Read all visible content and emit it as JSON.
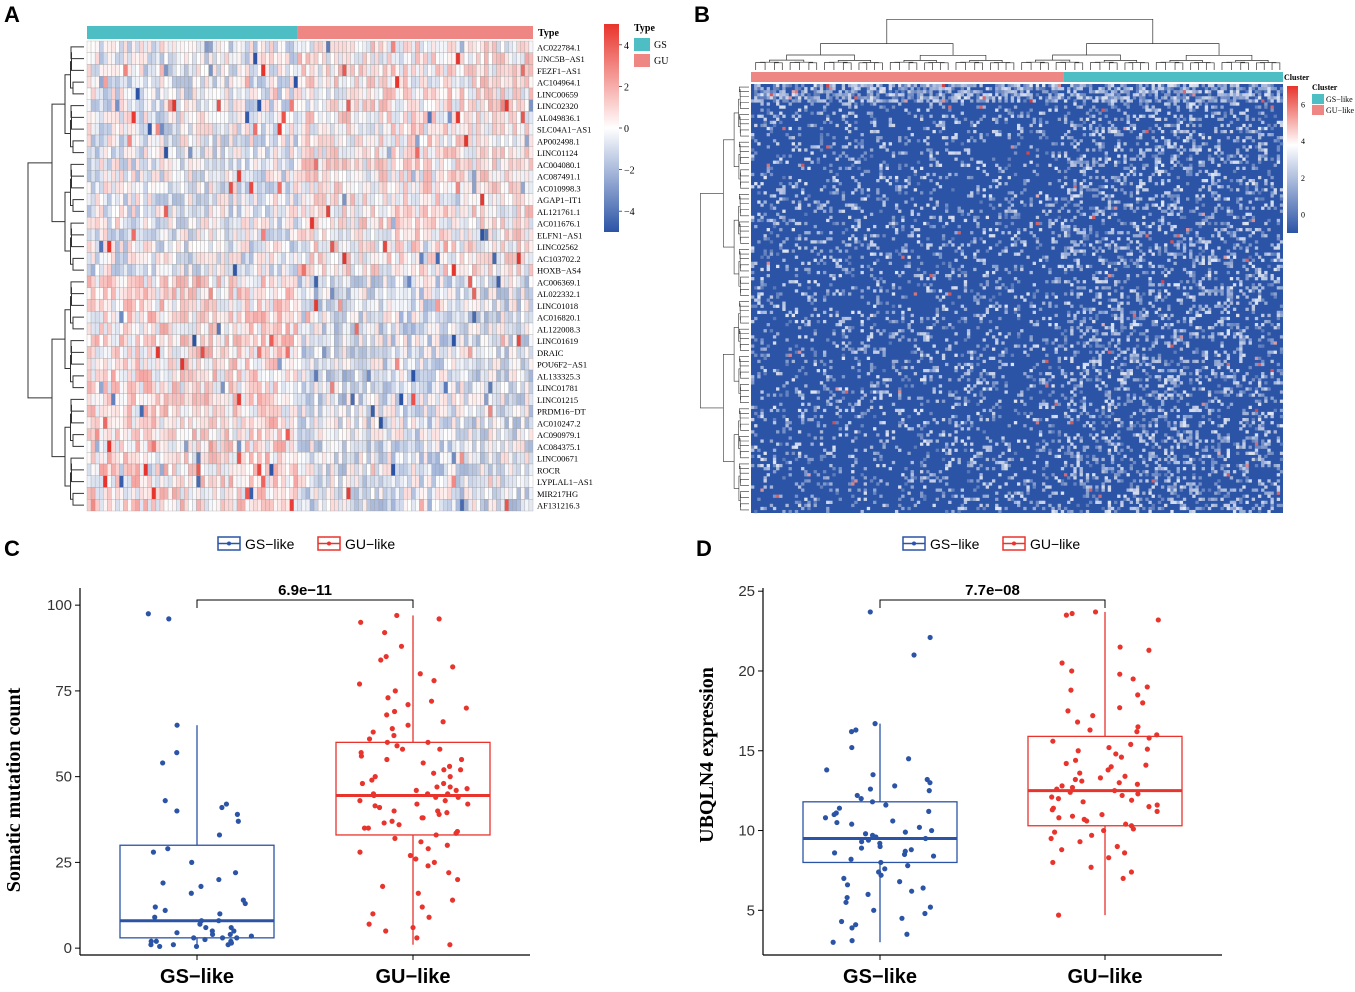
{
  "panels": {
    "A": {
      "letter": "A",
      "type_label": "Type",
      "legend_title": "Type",
      "legend_items": [
        "GS",
        "GU"
      ],
      "scale_ticks": [
        "4",
        "2",
        "0",
        "−2",
        "−4"
      ],
      "colors": {
        "gs": "#4dbfc4",
        "gu": "#ee8684",
        "high": "#e8342c",
        "mid": "#ffffff",
        "low": "#2b54a6"
      },
      "genes": [
        "AC022784.1",
        "UNC5B−AS1",
        "FEZF1−AS1",
        "AC104964.1",
        "LINC00659",
        "LINC02320",
        "AL049836.1",
        "SLC04A1−AS1",
        "AP002498.1",
        "LINC01124",
        "AC004080.1",
        "AC087491.1",
        "AC010998.3",
        "AGAP1−IT1",
        "AL121761.1",
        "AC011676.1",
        "ELFN1−AS1",
        "LINC02562",
        "AC103702.2",
        "HOXB−AS4",
        "AC006369.1",
        "AL022332.1",
        "LINC01018",
        "AC016820.1",
        "AL122008.3",
        "LINC01619",
        "DRAIC",
        "POU6F2−AS1",
        "AL133325.3",
        "LINC01781",
        "LINC01215",
        "PRDM16−DT",
        "AC010247.2",
        "AC090979.1",
        "AC084375.1",
        "LINC00671",
        "ROCR",
        "LYPLAL1−AS1",
        "MIR217HG",
        "AF131216.3"
      ]
    },
    "B": {
      "letter": "B",
      "cluster_label": "Cluster",
      "legend_title": "Cluster",
      "legend_items": [
        "GS−like",
        "GU−like"
      ],
      "scale_ticks": [
        "6",
        "4",
        "2",
        "0"
      ],
      "colors": {
        "gs": "#4dbfc4",
        "gu": "#ee8684",
        "high": "#e8342c",
        "mid": "#ffffff",
        "low": "#2b54a6"
      }
    },
    "C": {
      "letter": "C"
    },
    "D": {
      "letter": "D"
    }
  },
  "chart_data": [
    {
      "type": "heatmap",
      "panel": "A",
      "columns": {
        "GS": 52,
        "GU": 58
      },
      "rows": 40,
      "color_range": [
        -5,
        5
      ],
      "annotation": "Type"
    },
    {
      "type": "heatmap",
      "panel": "B",
      "columns": {
        "GU-like": 100,
        "GS-like": 70
      },
      "color_range": [
        -1,
        7
      ],
      "annotation": "Cluster"
    },
    {
      "type": "box",
      "panel": "C",
      "ylabel": "Somatic mutation count",
      "categories": [
        "GS−like",
        "GU−like"
      ],
      "legend": [
        "GS−like",
        "GU−like"
      ],
      "colors": [
        "#2b54a6",
        "#e8342c"
      ],
      "ylim": [
        -2,
        105
      ],
      "yticks": [
        0,
        25,
        50,
        75,
        100
      ],
      "pvalue": "6.9e−11",
      "boxes": [
        {
          "name": "GS−like",
          "q1": 3,
          "median": 8,
          "q3": 30,
          "whisker_low": 0,
          "whisker_high": 65
        },
        {
          "name": "GU−like",
          "q1": 33,
          "median": 44.5,
          "q3": 60,
          "whisker_low": 1,
          "whisker_high": 97
        }
      ],
      "points": [
        [
          97.5,
          96,
          65,
          57,
          54,
          43,
          42,
          41,
          40,
          39,
          37,
          33,
          29,
          28,
          25,
          22,
          20,
          19,
          18,
          16,
          14,
          13,
          12,
          11,
          10,
          9,
          8,
          8,
          7,
          6,
          6,
          5,
          5,
          4,
          4,
          3,
          3,
          3,
          2,
          2,
          2,
          1,
          1,
          1,
          0.5,
          0.5,
          1.5,
          2.5,
          3.5,
          4.5
        ],
        [
          97,
          96,
          95,
          92,
          88,
          85,
          84,
          82,
          80,
          78,
          77,
          75,
          73,
          72,
          71,
          70,
          69,
          68,
          66,
          65,
          64,
          63,
          62,
          61,
          60,
          60,
          59,
          58,
          58,
          57,
          56,
          55,
          55,
          54,
          53,
          52,
          52,
          51,
          50,
          50,
          49,
          48,
          48,
          47,
          47,
          46,
          46,
          45,
          45,
          45,
          44,
          44,
          43,
          43,
          42,
          42,
          41,
          40,
          40,
          39,
          38,
          38,
          37,
          36,
          35,
          35,
          34,
          33,
          32,
          31,
          30,
          29,
          28,
          27,
          26,
          25,
          24,
          22,
          20,
          18,
          16,
          14,
          12,
          10,
          9,
          7,
          6,
          5,
          3,
          1,
          44.5,
          46.5,
          41.5,
          39.5,
          36.5,
          33.5
        ]
      ]
    },
    {
      "type": "box",
      "panel": "D",
      "ylabel": "UBQLN4 expression",
      "categories": [
        "GS−like",
        "GU−like"
      ],
      "legend": [
        "GS−like",
        "GU−like"
      ],
      "colors": [
        "#2b54a6",
        "#e8342c"
      ],
      "ylim": [
        2.2,
        25.2
      ],
      "yticks": [
        5,
        10,
        15,
        20,
        25
      ],
      "pvalue": "7.7e−08",
      "boxes": [
        {
          "name": "GS−like",
          "q1": 8,
          "median": 9.5,
          "q3": 11.8,
          "whisker_low": 3,
          "whisker_high": 16.7
        },
        {
          "name": "GU−like",
          "q1": 10.3,
          "median": 12.5,
          "q3": 15.9,
          "whisker_low": 4.7,
          "whisker_high": 23.7
        }
      ],
      "points": [
        [
          23.7,
          22.1,
          21,
          16.7,
          16.3,
          16.2,
          15.2,
          14.5,
          13.8,
          13.2,
          13,
          12.8,
          12.5,
          12.2,
          12,
          11.8,
          11.6,
          11.4,
          11.2,
          11,
          10.8,
          10.6,
          10.4,
          10.2,
          10,
          9.9,
          9.8,
          9.6,
          9.5,
          9.4,
          9.3,
          9.2,
          9,
          8.9,
          8.8,
          8.6,
          8.5,
          8.4,
          8.2,
          8,
          7.8,
          7.6,
          7.4,
          7.2,
          7,
          6.8,
          6.6,
          6.4,
          6.2,
          6,
          5.8,
          5.5,
          5.2,
          5,
          4.8,
          4.5,
          4.3,
          4.1,
          3.9,
          3.5,
          3.1,
          3,
          9.7,
          10.5,
          11.1,
          12.6,
          13.5,
          8.7
        ],
        [
          23.7,
          23.6,
          23.5,
          23.2,
          21.5,
          21.3,
          20.5,
          20,
          19.8,
          19.5,
          19,
          18.8,
          18.5,
          18,
          17.7,
          17.5,
          17.2,
          16.8,
          16.5,
          16.3,
          16,
          15.8,
          15.6,
          15.4,
          15.2,
          15,
          14.8,
          14.6,
          14.4,
          14.2,
          14,
          13.8,
          13.6,
          13.4,
          13.2,
          13,
          12.9,
          12.8,
          12.6,
          12.5,
          12.4,
          12.2,
          12.1,
          12,
          11.9,
          11.8,
          11.6,
          11.5,
          11.3,
          11.2,
          11,
          10.9,
          10.7,
          10.6,
          10.4,
          10.3,
          10.1,
          10,
          9.9,
          9.7,
          9.5,
          9.3,
          9,
          8.8,
          8.6,
          8.3,
          8,
          7.7,
          7.4,
          7,
          4.7,
          12.7,
          13.1,
          14.1,
          15.1,
          16.2,
          11.4,
          12.3,
          13.3,
          10.8
        ]
      ]
    }
  ]
}
